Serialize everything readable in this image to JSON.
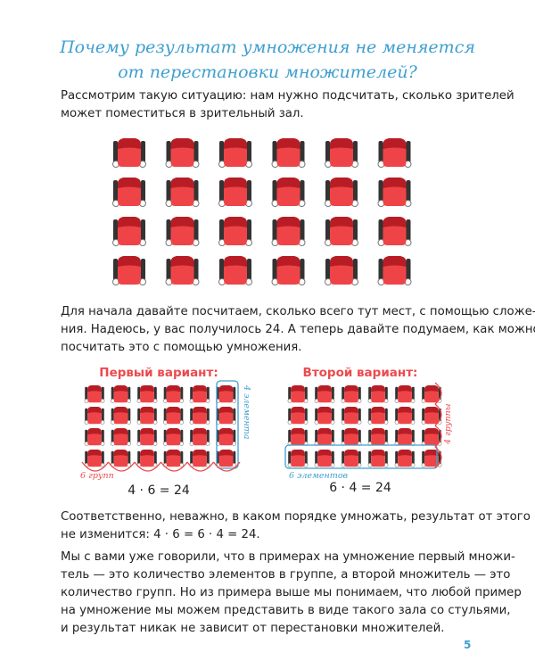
{
  "title": {
    "line1": "Почему результат умножения не меняется",
    "line2": "от перестановки множителей?"
  },
  "paragraph1": [
    "Рассмотрим такую ситуацию: нам нужно подсчитать, сколько зрителей",
    "может поместиться в зрительный зал."
  ],
  "paragraph2": [
    "Для начала давайте посчитаем, сколько всего тут мест, с помощью сложе-",
    "ния. Надеюсь, у вас получилось 24. А теперь давайте подумаем, как можно",
    "посчитать это с помощью умножения."
  ],
  "variant1": {
    "heading": "Первый вариант:",
    "elements_label": "4 элемента",
    "groups_label": "6 групп",
    "equation": "4 · 6 = 24"
  },
  "variant2": {
    "heading": "Второй вариант:",
    "elements_label": "6 элементов",
    "groups_label": "4 группы",
    "equation": "6 · 4 = 24"
  },
  "paragraph3": [
    "Соответственно, неважно, в каком порядке умножать, результат от этого",
    "не изменится: 4 · 6 = 6 · 4 = 24."
  ],
  "paragraph4": [
    "Мы с вами уже говорили, что в примерах на умножение первый множи-",
    "тель — это количество элементов в группе, а второй множитель — это",
    "количество групп. Но из примера выше мы понимаем, что любой пример",
    "на умножение мы можем представить в виде такого зала со стульями,",
    "и результат никак не зависит от перестановки множителей."
  ],
  "page_number": "5",
  "colors": {
    "accent_blue": "#3f9fcf",
    "accent_red": "#ec4a4e",
    "seat_red": "#e83a3e"
  }
}
